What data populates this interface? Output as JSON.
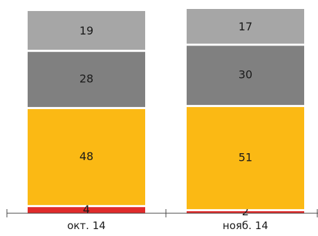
{
  "chart_data": {
    "type": "bar",
    "stacked": true,
    "categories": [
      "окт. 14",
      "нояб. 14"
    ],
    "series": [
      {
        "values": [
          4,
          2
        ],
        "color": "#e02b2b"
      },
      {
        "values": [
          48,
          51
        ],
        "color": "#fbb914"
      },
      {
        "values": [
          28,
          30
        ],
        "color": "#808080"
      },
      {
        "values": [
          19,
          17
        ],
        "color": "#a6a6a6"
      }
    ],
    "title": "",
    "xlabel": "",
    "ylabel": "",
    "ylim": [
      0,
      100
    ],
    "legend": "none",
    "grid": false
  }
}
